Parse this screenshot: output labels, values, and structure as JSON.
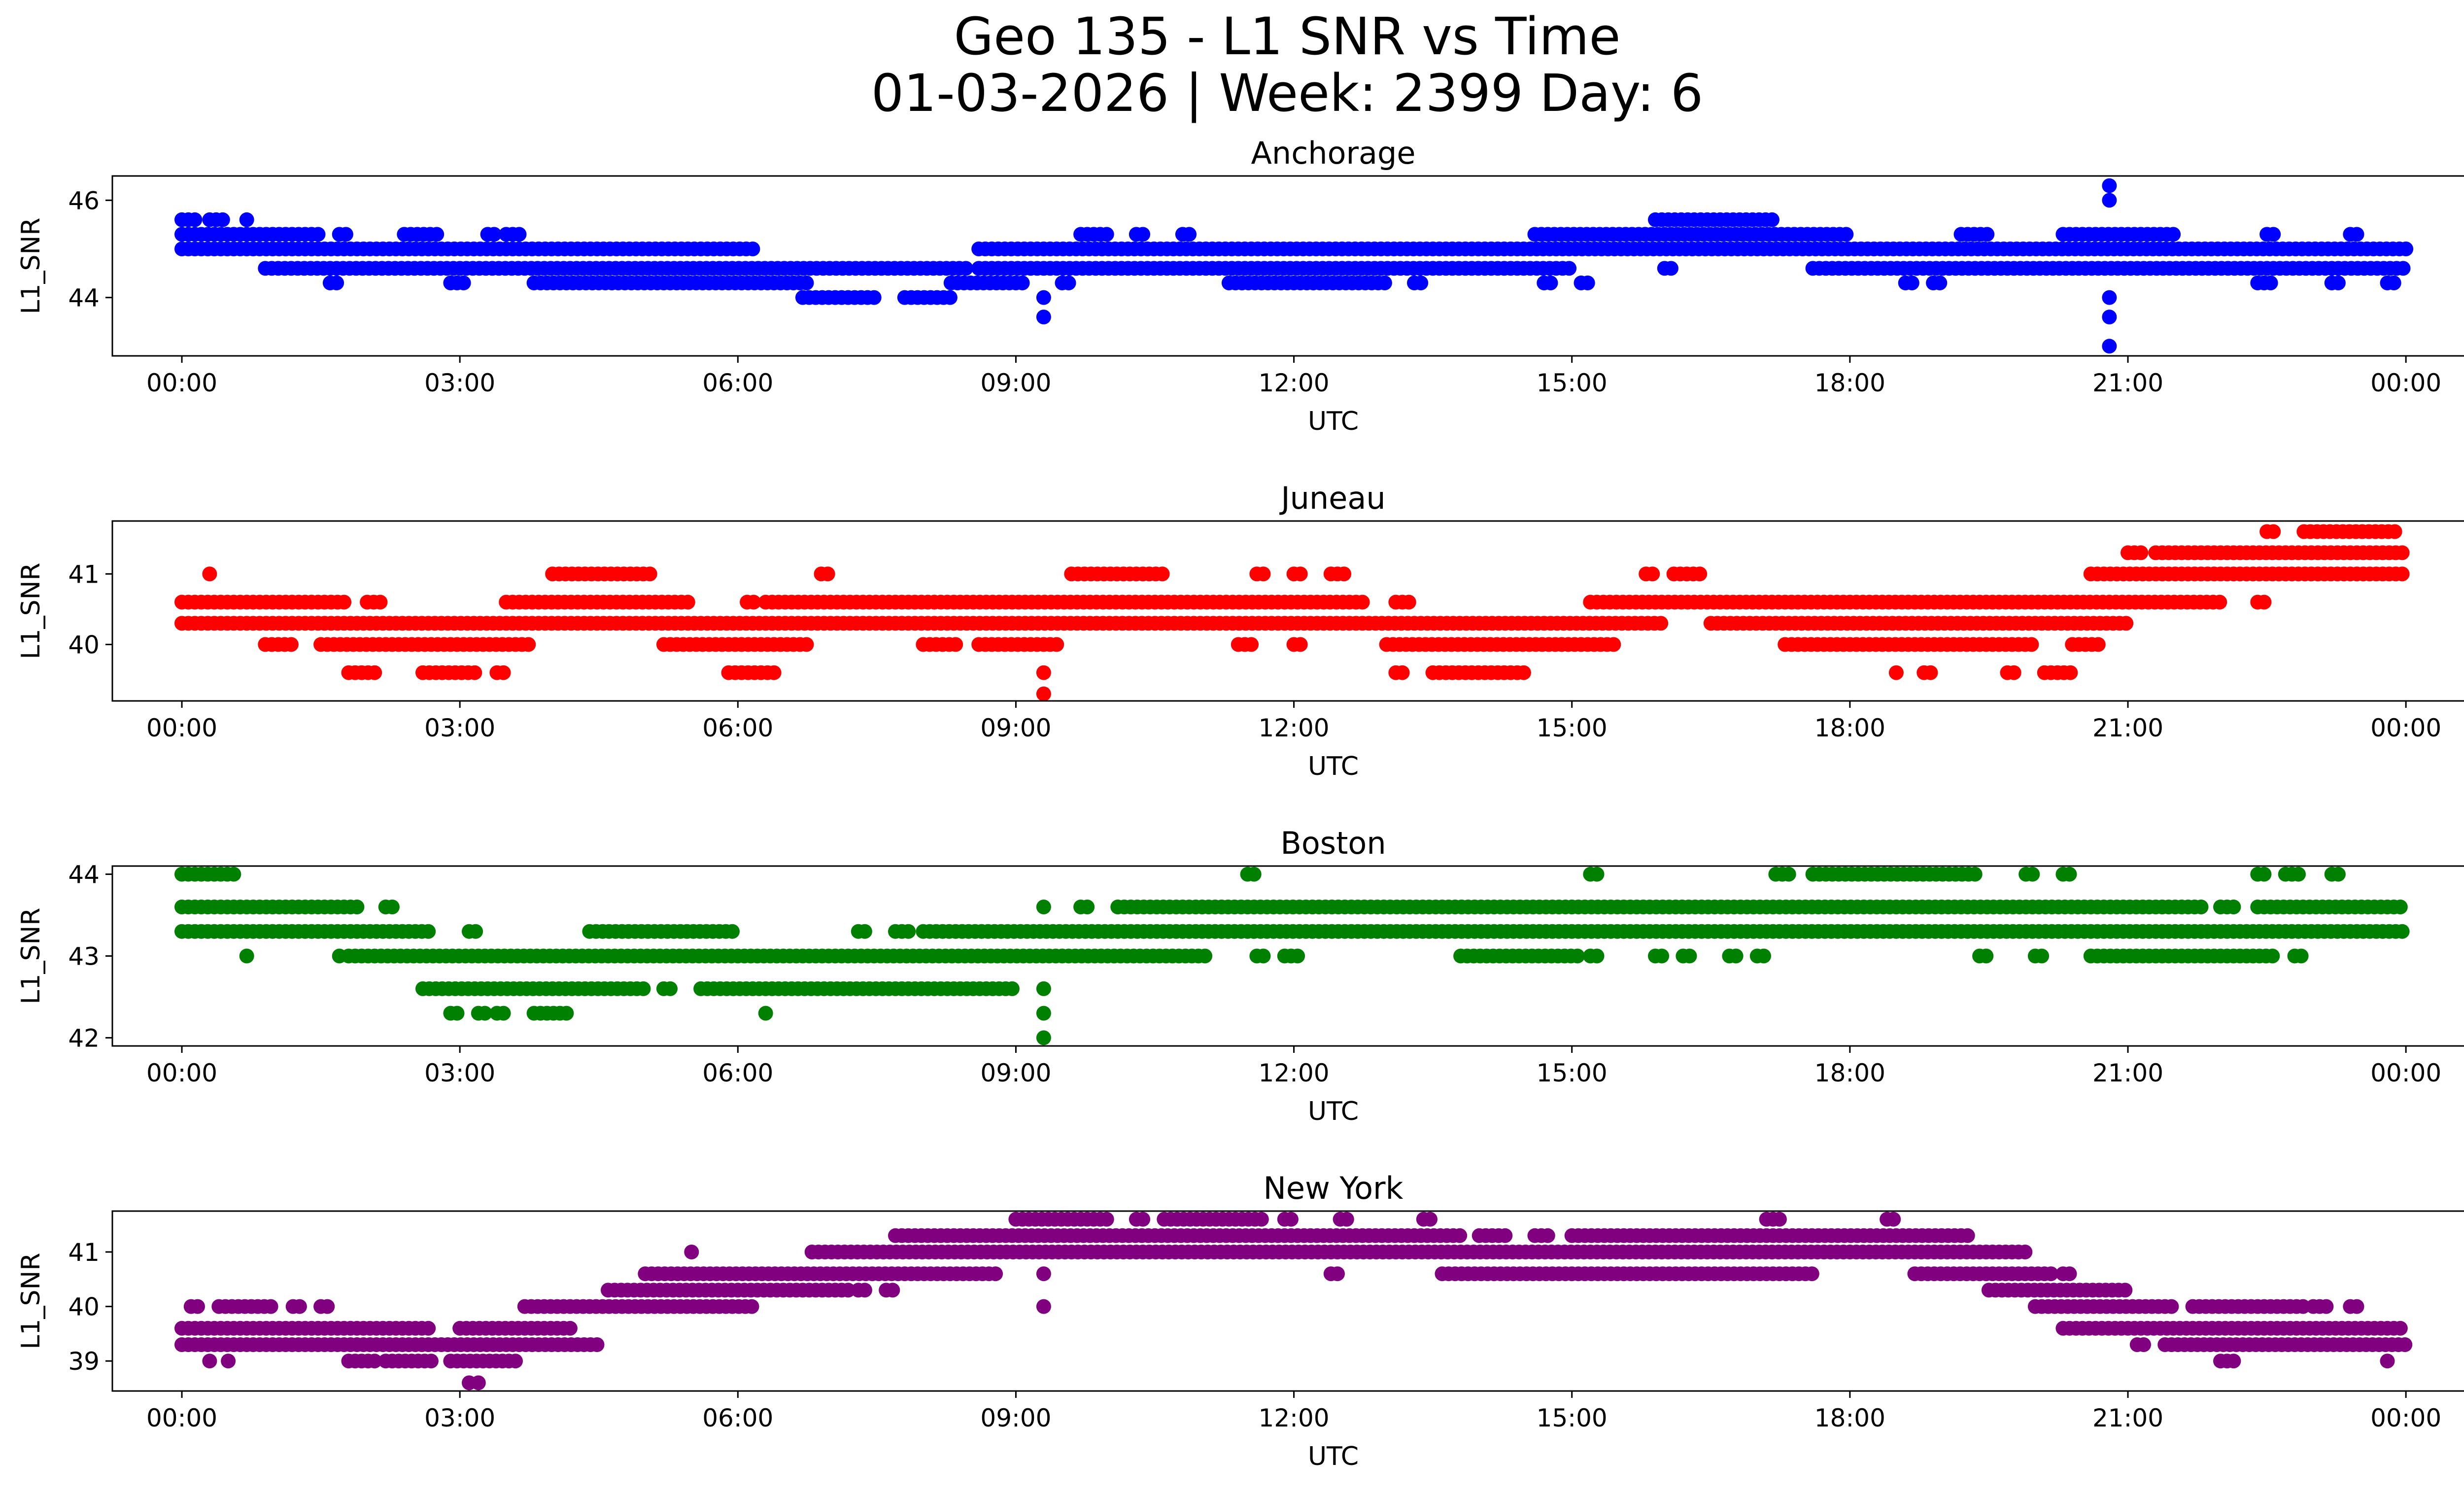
{
  "figure": {
    "title_line1": "Geo 135 - L1 SNR vs Time",
    "title_line2": "01-03-2026 | Week: 2399 Day: 6"
  },
  "chart_data": [
    {
      "type": "scatter",
      "title": "Anchorage",
      "xlabel": "UTC",
      "ylabel": "L1_SNR",
      "color": "#0000ff",
      "x_unit": "hours",
      "xlim": [
        -0.75,
        25.6
      ],
      "ylim": [
        42.8,
        46.5
      ],
      "xticks": [
        0,
        3,
        6,
        9,
        12,
        15,
        18,
        21,
        24
      ],
      "xtick_labels": [
        "00:00",
        "03:00",
        "06:00",
        "09:00",
        "12:00",
        "15:00",
        "18:00",
        "21:00",
        "00:00"
      ],
      "yticks": [
        44,
        46
      ],
      "bands": [
        {
          "y": 45.6,
          "x_ranges": [
            [
              0,
              0.15
            ],
            [
              0.3,
              0.5
            ],
            [
              0.7,
              0.75
            ],
            [
              15.9,
              17.2
            ]
          ]
        },
        {
          "y": 45.3,
          "x_ranges": [
            [
              0,
              1.5
            ],
            [
              1.7,
              1.8
            ],
            [
              2.4,
              2.8
            ],
            [
              3.3,
              3.4
            ],
            [
              3.5,
              3.7
            ],
            [
              9.7,
              10.0
            ],
            [
              10.3,
              10.4
            ],
            [
              10.8,
              10.9
            ],
            [
              14.6,
              18.0
            ],
            [
              19.2,
              19.5
            ],
            [
              20.3,
              21.5
            ],
            [
              22.5,
              22.6
            ],
            [
              23.4,
              23.5
            ]
          ]
        },
        {
          "y": 45.0,
          "x_ranges": [
            [
              0,
              6.2
            ],
            [
              8.6,
              24
            ]
          ]
        },
        {
          "y": 44.6,
          "x_ranges": [
            [
              0.9,
              8.5
            ],
            [
              8.6,
              15.0
            ],
            [
              16.0,
              16.1
            ],
            [
              17.6,
              24
            ]
          ]
        },
        {
          "y": 44.3,
          "x_ranges": [
            [
              1.6,
              1.7
            ],
            [
              2.9,
              3.1
            ],
            [
              3.8,
              6.8
            ],
            [
              8.3,
              9.1
            ],
            [
              9.5,
              9.6
            ],
            [
              11.3,
              13.0
            ],
            [
              13.3,
              13.4
            ],
            [
              14.7,
              14.8
            ],
            [
              15.1,
              15.2
            ],
            [
              18.6,
              18.7
            ],
            [
              18.9,
              19.0
            ],
            [
              22.4,
              22.6
            ],
            [
              23.2,
              23.3
            ],
            [
              23.8,
              23.9
            ]
          ]
        },
        {
          "y": 44.0,
          "x_ranges": [
            [
              6.7,
              7.5
            ],
            [
              7.8,
              8.3
            ],
            [
              9.3,
              9.35
            ],
            [
              20.8,
              20.85
            ]
          ]
        }
      ],
      "points": [
        {
          "x": 9.3,
          "y": 43.6
        },
        {
          "x": 20.8,
          "y": 43.6
        },
        {
          "x": 20.8,
          "y": 43.0
        },
        {
          "x": 20.8,
          "y": 46.3
        },
        {
          "x": 20.8,
          "y": 46.0
        }
      ]
    },
    {
      "type": "scatter",
      "title": "Juneau",
      "xlabel": "UTC",
      "ylabel": "L1_SNR",
      "color": "#ff0000",
      "x_unit": "hours",
      "xlim": [
        -0.75,
        25.6
      ],
      "ylim": [
        39.2,
        41.75
      ],
      "xticks": [
        0,
        3,
        6,
        9,
        12,
        15,
        18,
        21,
        24
      ],
      "xtick_labels": [
        "00:00",
        "03:00",
        "06:00",
        "09:00",
        "12:00",
        "15:00",
        "18:00",
        "21:00",
        "00:00"
      ],
      "yticks": [
        40,
        41
      ],
      "bands": [
        {
          "y": 41.6,
          "x_ranges": [
            [
              22.5,
              22.6
            ],
            [
              22.9,
              23.9
            ]
          ]
        },
        {
          "y": 41.3,
          "x_ranges": [
            [
              21.0,
              21.2
            ],
            [
              21.3,
              24
            ]
          ]
        },
        {
          "y": 41.0,
          "x_ranges": [
            [
              0.3,
              0.35
            ],
            [
              4.0,
              5.1
            ],
            [
              6.9,
              7.0
            ],
            [
              9.6,
              10.6
            ],
            [
              11.6,
              11.7
            ],
            [
              12.0,
              12.1
            ],
            [
              12.4,
              12.6
            ],
            [
              15.8,
              15.9
            ],
            [
              16.1,
              16.4
            ],
            [
              20.6,
              24
            ]
          ]
        },
        {
          "y": 40.6,
          "x_ranges": [
            [
              0,
              1.8
            ],
            [
              2.0,
              2.2
            ],
            [
              3.5,
              5.5
            ],
            [
              6.1,
              6.2
            ],
            [
              6.3,
              12.8
            ],
            [
              13.1,
              13.3
            ],
            [
              15.2,
              22.0
            ],
            [
              22.4,
              22.5
            ]
          ]
        },
        {
          "y": 40.3,
          "x_ranges": [
            [
              0,
              16.0
            ],
            [
              16.5,
              21.0
            ]
          ]
        },
        {
          "y": 40.0,
          "x_ranges": [
            [
              0.9,
              1.2
            ],
            [
              1.5,
              3.8
            ],
            [
              5.2,
              6.8
            ],
            [
              8.0,
              8.4
            ],
            [
              8.6,
              9.5
            ],
            [
              11.4,
              11.6
            ],
            [
              12.0,
              12.1
            ],
            [
              13.0,
              15.5
            ],
            [
              17.3,
              20.0
            ],
            [
              20.4,
              20.7
            ]
          ]
        },
        {
          "y": 39.6,
          "x_ranges": [
            [
              1.8,
              2.1
            ],
            [
              2.6,
              3.2
            ],
            [
              3.4,
              3.5
            ],
            [
              5.9,
              6.4
            ],
            [
              9.3,
              9.35
            ],
            [
              13.1,
              13.2
            ],
            [
              13.5,
              14.5
            ],
            [
              18.5,
              18.55
            ],
            [
              18.8,
              18.9
            ],
            [
              19.7,
              19.8
            ],
            [
              20.1,
              20.4
            ]
          ]
        },
        {
          "y": 39.3,
          "x_ranges": [
            [
              9.3,
              9.35
            ]
          ]
        }
      ],
      "points": []
    },
    {
      "type": "scatter",
      "title": "Boston",
      "xlabel": "UTC",
      "ylabel": "L1_SNR",
      "color": "#008000",
      "x_unit": "hours",
      "xlim": [
        -0.75,
        25.6
      ],
      "ylim": [
        41.9,
        44.1
      ],
      "xticks": [
        0,
        3,
        6,
        9,
        12,
        15,
        18,
        21,
        24
      ],
      "xtick_labels": [
        "00:00",
        "03:00",
        "06:00",
        "09:00",
        "12:00",
        "15:00",
        "18:00",
        "21:00",
        "00:00"
      ],
      "yticks": [
        42,
        43,
        44
      ],
      "bands": [
        {
          "y": 44.0,
          "x_ranges": [
            [
              0,
              0.6
            ],
            [
              11.5,
              11.6
            ],
            [
              15.2,
              15.3
            ],
            [
              17.2,
              17.4
            ],
            [
              17.6,
              19.4
            ],
            [
              19.9,
              20.0
            ],
            [
              20.3,
              20.4
            ],
            [
              22.4,
              22.5
            ],
            [
              22.7,
              22.9
            ],
            [
              23.2,
              23.3
            ]
          ]
        },
        {
          "y": 43.6,
          "x_ranges": [
            [
              0,
              1.9
            ],
            [
              2.2,
              2.3
            ],
            [
              9.3,
              9.35
            ],
            [
              9.7,
              9.8
            ],
            [
              10.1,
              21.8
            ],
            [
              22.0,
              22.2
            ],
            [
              22.4,
              24
            ]
          ]
        },
        {
          "y": 43.3,
          "x_ranges": [
            [
              0,
              2.7
            ],
            [
              3.1,
              3.2
            ],
            [
              4.4,
              6.0
            ],
            [
              7.3,
              7.4
            ],
            [
              7.7,
              7.9
            ],
            [
              8.0,
              24
            ]
          ]
        },
        {
          "y": 43.0,
          "x_ranges": [
            [
              0.7,
              0.75
            ],
            [
              1.7,
              1.75
            ],
            [
              1.8,
              11.1
            ],
            [
              11.6,
              11.7
            ],
            [
              11.9,
              12.1
            ],
            [
              13.8,
              15.1
            ],
            [
              15.2,
              15.3
            ],
            [
              15.9,
              16.0
            ],
            [
              16.2,
              16.3
            ],
            [
              16.7,
              16.8
            ],
            [
              17.0,
              17.1
            ],
            [
              19.4,
              19.5
            ],
            [
              20.0,
              20.1
            ],
            [
              20.6,
              22.6
            ],
            [
              22.8,
              22.9
            ]
          ]
        },
        {
          "y": 42.6,
          "x_ranges": [
            [
              2.6,
              5.0
            ],
            [
              5.2,
              5.3
            ],
            [
              5.6,
              9.0
            ],
            [
              9.3,
              9.35
            ]
          ]
        },
        {
          "y": 42.3,
          "x_ranges": [
            [
              2.9,
              3.0
            ],
            [
              3.2,
              3.3
            ],
            [
              3.4,
              3.5
            ],
            [
              3.8,
              4.2
            ],
            [
              6.3,
              6.35
            ],
            [
              9.3,
              9.35
            ]
          ]
        },
        {
          "y": 42.0,
          "x_ranges": [
            [
              9.3,
              9.35
            ]
          ]
        }
      ],
      "points": []
    },
    {
      "type": "scatter",
      "title": "New York",
      "xlabel": "UTC",
      "ylabel": "L1_SNR",
      "color": "#800080",
      "x_unit": "hours",
      "xlim": [
        -0.75,
        25.6
      ],
      "ylim": [
        38.45,
        41.75
      ],
      "xticks": [
        0,
        3,
        6,
        9,
        12,
        15,
        18,
        21,
        24
      ],
      "xtick_labels": [
        "00:00",
        "03:00",
        "06:00",
        "09:00",
        "12:00",
        "15:00",
        "18:00",
        "21:00",
        "00:00"
      ],
      "yticks": [
        39,
        40,
        41
      ],
      "bands": [
        {
          "y": 41.6,
          "x_ranges": [
            [
              9.0,
              10.0
            ],
            [
              10.3,
              10.4
            ],
            [
              10.6,
              11.7
            ],
            [
              11.9,
              12.0
            ],
            [
              12.5,
              12.6
            ],
            [
              13.4,
              13.5
            ],
            [
              17.1,
              17.3
            ],
            [
              18.4,
              18.5
            ]
          ]
        },
        {
          "y": 41.3,
          "x_ranges": [
            [
              7.7,
              13.8
            ],
            [
              14.0,
              14.3
            ],
            [
              14.6,
              14.8
            ],
            [
              15.0,
              19.3
            ]
          ]
        },
        {
          "y": 41.0,
          "x_ranges": [
            [
              6.8,
              19.9
            ]
          ]
        },
        {
          "y": 40.6,
          "x_ranges": [
            [
              5.0,
              8.8
            ],
            [
              9.3,
              9.35
            ],
            [
              12.4,
              12.5
            ],
            [
              13.6,
              17.6
            ],
            [
              18.7,
              20.2
            ],
            [
              20.3,
              20.4
            ]
          ]
        },
        {
          "y": 40.3,
          "x_ranges": [
            [
              4.6,
              7.2
            ],
            [
              7.3,
              7.4
            ],
            [
              7.6,
              7.7
            ],
            [
              19.5,
              21.0
            ]
          ]
        },
        {
          "y": 40.0,
          "x_ranges": [
            [
              0.1,
              0.2
            ],
            [
              0.4,
              1.0
            ],
            [
              1.2,
              1.3
            ],
            [
              1.5,
              1.6
            ],
            [
              3.7,
              6.2
            ],
            [
              9.3,
              9.35
            ],
            [
              20.0,
              21.5
            ],
            [
              21.7,
              22.9
            ],
            [
              23.0,
              23.2
            ],
            [
              23.4,
              23.5
            ]
          ]
        },
        {
          "y": 39.6,
          "x_ranges": [
            [
              0,
              2.7
            ],
            [
              3.0,
              4.2
            ],
            [
              20.3,
              24
            ]
          ]
        },
        {
          "y": 39.3,
          "x_ranges": [
            [
              0,
              4.5
            ],
            [
              21.1,
              21.2
            ],
            [
              21.4,
              24
            ]
          ]
        },
        {
          "y": 39.0,
          "x_ranges": [
            [
              0.3,
              0.35
            ],
            [
              0.5,
              0.55
            ],
            [
              1.8,
              2.1
            ],
            [
              2.2,
              2.7
            ],
            [
              2.9,
              3.6
            ],
            [
              22.0,
              22.2
            ],
            [
              23.8,
              23.85
            ]
          ]
        }
      ],
      "points": [
        {
          "x": 3.1,
          "y": 38.6
        },
        {
          "x": 5.5,
          "y": 41.0
        },
        {
          "x": 3.2,
          "y": 38.6
        }
      ]
    }
  ]
}
